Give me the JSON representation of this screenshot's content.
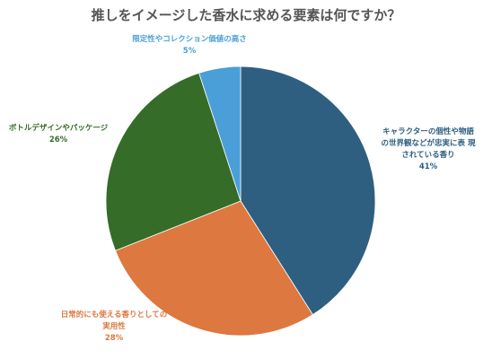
{
  "chart_data": {
    "type": "pie",
    "title": "推しをイメージした香水に求める要素は何ですか？",
    "start_angle_deg": 0,
    "direction": "clockwise",
    "slices": [
      {
        "label_lines": [
          "キャラクターの個性や物語",
          "の世界観などが忠実に表 現",
          "されている香り"
        ],
        "value": 41,
        "value_label": "41%",
        "color": "#2e5f80"
      },
      {
        "label_lines": [
          "日常的にも使える香りとしての",
          "実用性"
        ],
        "value": 28,
        "value_label": "28%",
        "color": "#dc7840"
      },
      {
        "label_lines": [
          "ボトルデザインやパッケージ"
        ],
        "value": 26,
        "value_label": "26%",
        "color": "#356c28"
      },
      {
        "label_lines": [
          "限定性やコレクション価値の高さ"
        ],
        "value": 5,
        "value_label": "5%",
        "color": "#4b9fd8"
      }
    ]
  }
}
